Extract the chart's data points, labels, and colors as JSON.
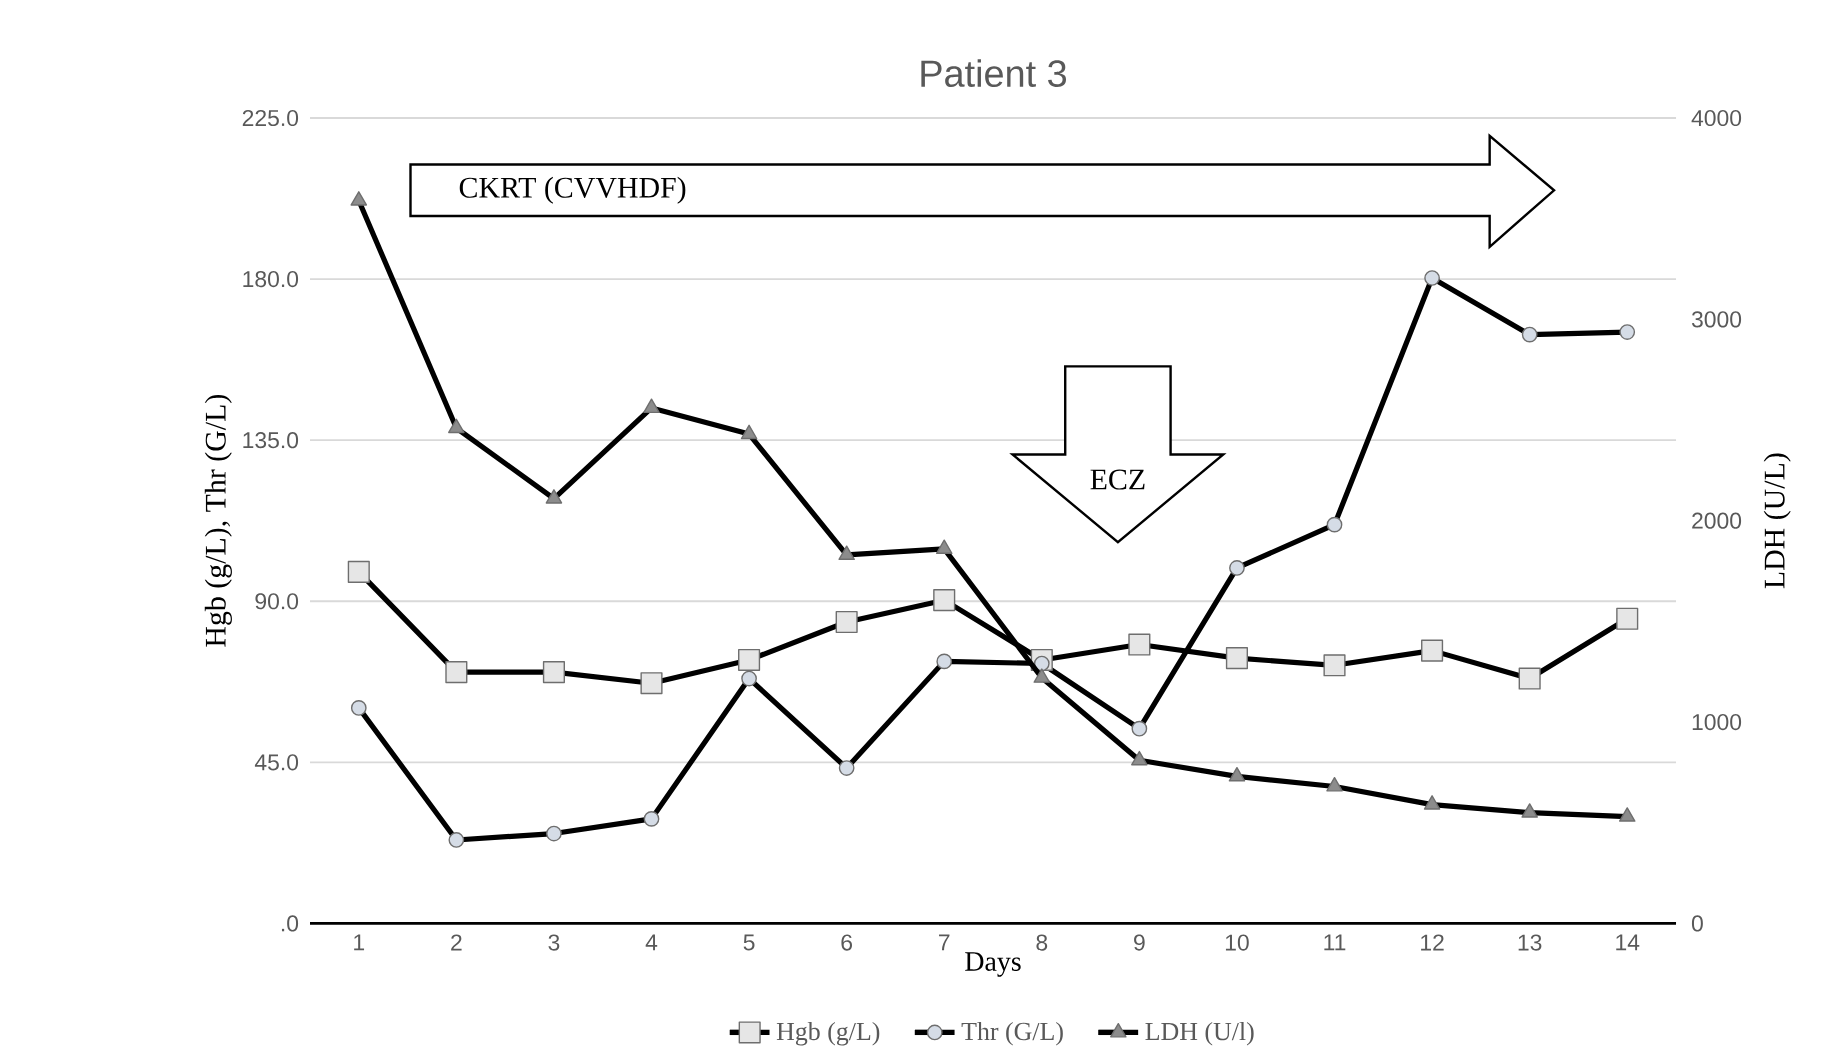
{
  "chart_data": {
    "type": "line",
    "title": "Patient 3",
    "xlabel": "Days",
    "ylabel": "Hgb (g/L), Thr (G/L)",
    "y2label": "LDH (U/L)",
    "categories": [
      "1",
      "2",
      "3",
      "4",
      "5",
      "6",
      "7",
      "8",
      "9",
      "10",
      "11",
      "12",
      "13",
      "14"
    ],
    "series": [
      {
        "name": "Hgb (g/L)",
        "color": "#000000",
        "marker": "square",
        "values": [
          98.2,
          70.2,
          70.2,
          67.1,
          73.6,
          84.2,
          90.3,
          73.6,
          77.9,
          74.1,
          72.1,
          76.2,
          68.4,
          85.1
        ]
      },
      {
        "name": "Thr (G/L)",
        "color": "#000000",
        "marker": "circle",
        "values": [
          60.2,
          23.3,
          25.1,
          29.2,
          68.4,
          43.4,
          73.2,
          72.6,
          54.4,
          99.3,
          111.4,
          180.3,
          164.5,
          165.2
        ]
      },
      {
        "name": "LDH (U/l)",
        "color": "#000000",
        "marker": "triangle",
        "axis": "y2",
        "values": [
          3590,
          2460,
          2110,
          2560,
          2430,
          1830,
          1860,
          1220,
          810,
          730,
          680,
          590,
          550,
          530
        ]
      }
    ],
    "ylim": [
      0,
      225
    ],
    "yticks": [
      {
        "value": 0,
        "label": ".0"
      },
      {
        "value": 45,
        "label": "45.0"
      },
      {
        "value": 90,
        "label": "90.0"
      },
      {
        "value": 135,
        "label": "135.0"
      },
      {
        "value": 180,
        "label": "180.0"
      },
      {
        "value": 225,
        "label": "225.0"
      }
    ],
    "y2lim": [
      0,
      4000
    ],
    "y2ticks": [
      0,
      1000,
      2000,
      3000,
      4000
    ],
    "grid": "y",
    "legend": "bottom",
    "line_style": "solid",
    "annotations": [
      "CKRT (CVVHDF)",
      "ECZ"
    ]
  }
}
